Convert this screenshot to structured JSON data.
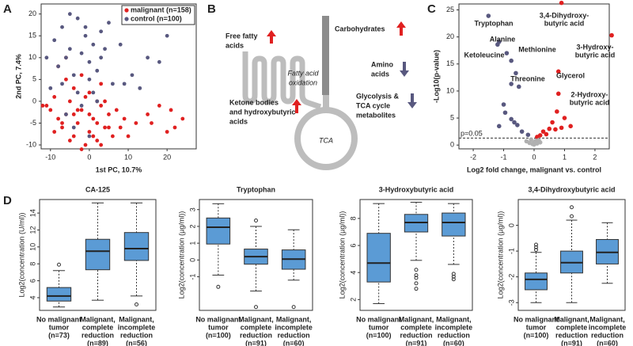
{
  "panel_labels": [
    "A",
    "B",
    "C",
    "D"
  ],
  "diagram": {
    "free_fatty_acids": [
      "Free fatty",
      "acids"
    ],
    "ketone_bodies": [
      "Ketone bodies",
      "and hydroxybutyric",
      "acids"
    ],
    "fatty_acid_oxidation": [
      "Fatty acid",
      "oxidation"
    ],
    "carbohydrates": [
      "Carbohydrates"
    ],
    "amino_acids": [
      "Amino",
      "acids"
    ],
    "glycolysis": [
      "Glycolysis &",
      "TCA cycle",
      "metabolites"
    ],
    "tca": "TCA"
  },
  "chart_data": [
    {
      "type": "scatter",
      "xlabel": "1st PC, 10.7%",
      "ylabel": "2nd PC, 7.4%",
      "xlim": [
        -12.4,
        27.5
      ],
      "ylim": [
        -10.9,
        22.3
      ],
      "xticks": [
        -10,
        0,
        10,
        20
      ],
      "yticks": [
        -10,
        -5,
        0,
        5,
        10,
        15,
        20
      ],
      "legend": "top-right",
      "series": [
        {
          "name": "malignant (n=158)",
          "color": "#e02020",
          "x": [
            -10,
            -8,
            -9,
            -7,
            -6,
            -5,
            -4,
            -3,
            -2,
            -1,
            0,
            1,
            2,
            3,
            4,
            5,
            6,
            -11,
            -9,
            -6,
            -4,
            -2,
            0,
            2,
            4,
            7,
            9,
            12,
            15,
            18,
            20,
            22,
            24,
            -8,
            -5,
            -3,
            -1,
            1,
            3,
            -7,
            -2,
            0,
            3,
            5,
            10,
            16,
            21,
            -12,
            -4,
            8,
            2,
            -6
          ],
          "y": [
            -2,
            -4,
            1,
            -6,
            -3,
            0,
            -8,
            -5,
            -2,
            -10,
            -7,
            -4,
            -9,
            -1,
            -6,
            -3,
            -8,
            -1,
            -7,
            5,
            3,
            -11,
            2,
            -5,
            0,
            -2,
            -4,
            -5,
            -3,
            -1,
            -7,
            -6,
            -4,
            8,
            -9,
            -2,
            1,
            -8,
            4,
            -5,
            6,
            -3,
            -10,
            -6,
            -8,
            -5,
            -2,
            -1,
            -3,
            -6,
            0,
            10
          ]
        },
        {
          "name": "control (n=100)",
          "color": "#58587f",
          "x": [
            -9,
            -7,
            -5,
            -3,
            -1,
            1,
            3,
            -8,
            -6,
            -4,
            -2,
            0,
            2,
            4,
            -10,
            -7,
            -3,
            0,
            5,
            8,
            -5,
            -1,
            3,
            6,
            11,
            15,
            18,
            20,
            -6,
            -2,
            2,
            -4,
            0,
            9,
            13,
            -11,
            1
          ],
          "y": [
            14,
            17,
            12,
            19,
            15,
            13,
            16,
            8,
            10,
            6,
            11,
            9,
            7,
            12,
            3,
            4,
            2,
            5,
            18,
            13,
            20,
            17,
            10,
            4,
            6,
            10,
            9,
            15,
            -3,
            -1,
            0,
            -6,
            -8,
            4,
            3,
            10,
            2
          ]
        }
      ]
    },
    {
      "type": "volcano",
      "xlabel": "Log2 fold change, malignant vs. control",
      "ylabel": "-Log10(p-value)",
      "xlim": [
        -2.47,
        2.47
      ],
      "ylim": [
        -0.7,
        26.1
      ],
      "xticks": [
        -2,
        -1,
        0,
        1,
        2
      ],
      "yticks": [
        0,
        5,
        10,
        15,
        20,
        25
      ],
      "threshold": {
        "value": 1.3,
        "label": "p=0.05"
      },
      "series": [
        {
          "color": "#e02020",
          "x": [
            0.9,
            2.55,
            0.8,
            0.8,
            0.75,
            1.0,
            1.2,
            0.6,
            0.5,
            0.3,
            0.2,
            0.1,
            0.7,
            0.4,
            0.9
          ],
          "y": [
            26.3,
            20.3,
            13.6,
            9.5,
            6.2,
            5.0,
            3.5,
            4.2,
            3.0,
            2.5,
            1.8,
            1.5,
            2.9,
            2.0,
            3.2
          ]
        },
        {
          "color": "#58587f",
          "x": [
            -1.5,
            -1.15,
            -0.9,
            -1.2,
            -0.75,
            -0.6,
            -0.75,
            -0.5,
            -1.0,
            -0.95,
            -0.75,
            -0.65,
            -0.55,
            -1.15,
            -0.4,
            -0.2
          ],
          "y": [
            23.9,
            19.1,
            17.0,
            18.6,
            15.6,
            13.3,
            11.3,
            10.8,
            7.5,
            6.0,
            4.8,
            4.2,
            3.7,
            3.5,
            2.5,
            1.9
          ]
        },
        {
          "color": "#b0b0b0",
          "x": [
            -0.1,
            0,
            0.05,
            -0.15,
            0.1,
            -0.05,
            0.15,
            -0.25,
            0.2,
            0
          ],
          "y": [
            1.0,
            0.5,
            0.8,
            0.4,
            0.3,
            0.2,
            0.9,
            0.7,
            0.5,
            0.1
          ]
        }
      ],
      "annotations": [
        [
          "Tryptophan"
        ],
        [
          "3,4-Dihydroxy-",
          "butyric acid"
        ],
        [
          "3-Hydroxy-",
          "butyric acid"
        ],
        [
          "Alanine"
        ],
        [
          "Methionine"
        ],
        [
          "Ketoleucine"
        ],
        [
          "Threonine"
        ],
        [
          "Glycerol"
        ],
        [
          "2-Hydroxy-",
          "butyric acid"
        ]
      ]
    },
    {
      "type": "box",
      "title": "CA-125",
      "ylabel": "Log2(concentration (U/ml))",
      "color": "#5b9bd5",
      "ylim": [
        2.5,
        15.6
      ],
      "yticks": [
        4,
        6,
        8,
        10,
        12,
        14
      ],
      "categories": [
        [
          "No malignant",
          "tumor",
          "(n=73)"
        ],
        [
          "Malignant,",
          "complete",
          "reduction",
          "(n=89)"
        ],
        [
          "Malignant,",
          "incomplete",
          "reduction",
          "(n=56)"
        ]
      ],
      "boxes": [
        {
          "whislo": 2.9,
          "q1": 3.6,
          "med": 4.2,
          "q3": 5.2,
          "whishi": 7.2,
          "fliers": [
            7.9
          ]
        },
        {
          "whislo": 3.7,
          "q1": 7.3,
          "med": 9.5,
          "q3": 10.9,
          "whishi": 15.2,
          "fliers": []
        },
        {
          "whislo": 4.2,
          "q1": 8.4,
          "med": 9.8,
          "q3": 11.7,
          "whishi": 15.2,
          "fliers": [
            3.2
          ]
        }
      ]
    },
    {
      "type": "box",
      "title": "Tryptophan",
      "ylabel": "Log2(concentration (µg/ml))",
      "color": "#5b9bd5",
      "ylim": [
        -3.0,
        3.6
      ],
      "yticks": [
        -1,
        0,
        1,
        2,
        3
      ],
      "categories": [
        [
          "No malignant",
          "tumor",
          "(n=100)"
        ],
        [
          "Malignant,",
          "complete",
          "reduction",
          "(n=91)"
        ],
        [
          "Malignant,",
          "incomplete",
          "reduction",
          "(n=60)"
        ]
      ],
      "boxes": [
        {
          "whislo": -0.9,
          "q1": 0.95,
          "med": 1.95,
          "q3": 2.5,
          "whishi": 3.35,
          "fliers": [
            -1.6
          ]
        },
        {
          "whislo": -1.85,
          "q1": -0.25,
          "med": 0.2,
          "q3": 0.65,
          "whishi": 2.0,
          "fliers": [
            2.35,
            -2.8
          ]
        },
        {
          "whislo": -1.2,
          "q1": -0.55,
          "med": 0.05,
          "q3": 0.6,
          "whishi": 1.8,
          "fliers": [
            -2.8
          ]
        }
      ]
    },
    {
      "type": "box",
      "title": "3-Hydroxybutyric acid",
      "ylabel": "Log2(concentration (µg/ml))",
      "color": "#5b9bd5",
      "ylim": [
        1.2,
        9.4
      ],
      "yticks": [
        2,
        4,
        6,
        8
      ],
      "categories": [
        [
          "No malignant",
          "tumor",
          "(n=100)"
        ],
        [
          "Malignant,",
          "complete",
          "reduction",
          "(n=91)"
        ],
        [
          "Malignant,",
          "incomplete",
          "reduction",
          "(n=60)"
        ]
      ],
      "boxes": [
        {
          "whislo": 1.7,
          "q1": 3.3,
          "med": 4.7,
          "q3": 6.9,
          "whishi": 9.1,
          "fliers": []
        },
        {
          "whislo": 4.9,
          "q1": 7.0,
          "med": 7.7,
          "q3": 8.3,
          "whishi": 9.2,
          "fliers": [
            4.2,
            3.8,
            3.6,
            3.2,
            2.8
          ]
        },
        {
          "whislo": 4.6,
          "q1": 6.7,
          "med": 7.7,
          "q3": 8.4,
          "whishi": 9.1,
          "fliers": [
            3.9,
            3.7,
            3.5
          ]
        }
      ]
    },
    {
      "type": "box",
      "title": "3,4-Dihydroxybutyric acid",
      "ylabel": "Log2(concentration (µg/ml))",
      "color": "#5b9bd5",
      "ylim": [
        -3.3,
        1.0
      ],
      "yticks": [
        -3,
        -2,
        -1,
        0
      ],
      "categories": [
        [
          "No malignant",
          "tumor",
          "(n=100)"
        ],
        [
          "Malignant,",
          "complete",
          "reduction",
          "(n=91)"
        ],
        [
          "Malignant,",
          "incomplete",
          "reduction",
          "(n=60)"
        ]
      ],
      "boxes": [
        {
          "whislo": -3.0,
          "q1": -2.5,
          "med": -2.1,
          "q3": -1.85,
          "whishi": -1.05,
          "fliers": [
            -0.75,
            -0.85,
            -0.95
          ]
        },
        {
          "whislo": -3.0,
          "q1": -1.85,
          "med": -1.45,
          "q3": -1.0,
          "whishi": 0.2,
          "fliers": [
            0.35,
            0.7
          ]
        },
        {
          "whislo": -2.25,
          "q1": -1.5,
          "med": -1.05,
          "q3": -0.55,
          "whishi": 0.1,
          "fliers": []
        }
      ]
    }
  ]
}
